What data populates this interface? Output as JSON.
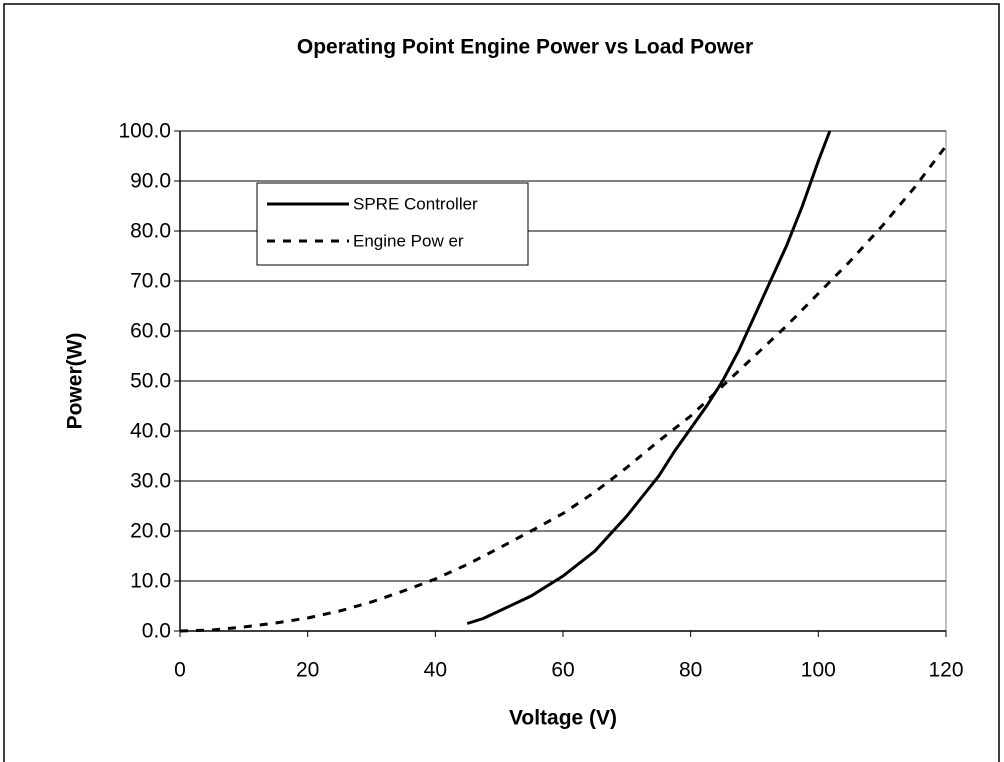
{
  "chart_data": {
    "type": "line",
    "title": "Operating Point Engine Power vs Load Power",
    "xlabel": "Voltage (V)",
    "ylabel": "Power(W)",
    "xlim": [
      0,
      120
    ],
    "ylim": [
      0,
      100
    ],
    "xticks": [
      0,
      20,
      40,
      60,
      80,
      100,
      120
    ],
    "yticks": [
      {
        "value": 0,
        "label": "0.0"
      },
      {
        "value": 10,
        "label": "10.0"
      },
      {
        "value": 20,
        "label": "20.0"
      },
      {
        "value": 30,
        "label": "30.0"
      },
      {
        "value": 40,
        "label": "40.0"
      },
      {
        "value": 50,
        "label": "50.0"
      },
      {
        "value": 60,
        "label": "60.0"
      },
      {
        "value": 70,
        "label": "70.0"
      },
      {
        "value": 80,
        "label": "80.0"
      },
      {
        "value": 90,
        "label": "90.0"
      },
      {
        "value": 100,
        "label": "100.0"
      }
    ],
    "grid": true,
    "legend": "upper left",
    "series": [
      {
        "name": "SPRE Controller",
        "color": "#000000",
        "line_style": "solid",
        "x": [
          45,
          47.5,
          50,
          55,
          60,
          65,
          70,
          72.5,
          75,
          77.5,
          80,
          82.5,
          85,
          87.5,
          90,
          92.5,
          95,
          97.5,
          100,
          101.8
        ],
        "values": [
          1.5,
          2.5,
          4,
          7,
          11,
          16,
          23,
          27,
          31,
          36,
          40.5,
          45,
          50,
          56,
          63,
          70,
          77,
          85,
          94,
          100
        ]
      },
      {
        "name": "Engine Pow er",
        "color": "#000000",
        "line_style": "dashed",
        "x": [
          0,
          5,
          10,
          15,
          20,
          25,
          30,
          35,
          40,
          45,
          50,
          55,
          60,
          65,
          70,
          75,
          80,
          85,
          90,
          95,
          100,
          105,
          110,
          115,
          120
        ],
        "values": [
          0,
          0.2,
          0.8,
          1.6,
          2.6,
          4,
          5.8,
          8,
          10.4,
          13.3,
          16.6,
          20,
          23.5,
          27.8,
          32.7,
          38,
          43,
          49,
          55,
          61,
          67.5,
          74,
          81,
          88.6,
          97
        ]
      }
    ]
  }
}
